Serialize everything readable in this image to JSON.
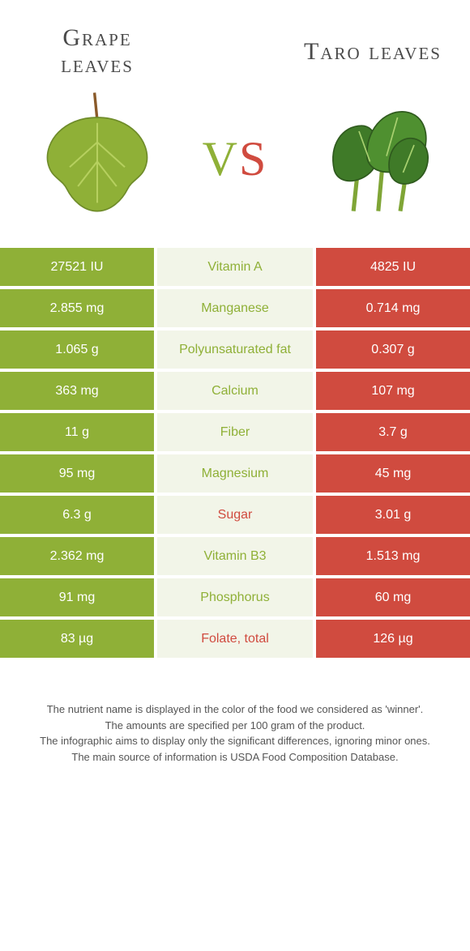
{
  "titles": {
    "left_line1": "Grape",
    "left_line2": "leaves",
    "right": "Taro leaves"
  },
  "vs": {
    "v": "V",
    "s": "S"
  },
  "colors": {
    "left_bar": "#8fb037",
    "right_bar": "#d04b3f",
    "mid_bg": "#f2f5e8",
    "winner_left_text": "#8fb037",
    "winner_right_text": "#d04b3f"
  },
  "rows": [
    {
      "left": "27521 IU",
      "label": "Vitamin A",
      "right": "4825 IU",
      "winner": "left"
    },
    {
      "left": "2.855 mg",
      "label": "Manganese",
      "right": "0.714 mg",
      "winner": "left"
    },
    {
      "left": "1.065 g",
      "label": "Polyunsaturated fat",
      "right": "0.307 g",
      "winner": "left"
    },
    {
      "left": "363 mg",
      "label": "Calcium",
      "right": "107 mg",
      "winner": "left"
    },
    {
      "left": "11 g",
      "label": "Fiber",
      "right": "3.7 g",
      "winner": "left"
    },
    {
      "left": "95 mg",
      "label": "Magnesium",
      "right": "45 mg",
      "winner": "left"
    },
    {
      "left": "6.3 g",
      "label": "Sugar",
      "right": "3.01 g",
      "winner": "right"
    },
    {
      "left": "2.362 mg",
      "label": "Vitamin B3",
      "right": "1.513 mg",
      "winner": "left"
    },
    {
      "left": "91 mg",
      "label": "Phosphorus",
      "right": "60 mg",
      "winner": "left"
    },
    {
      "left": "83 µg",
      "label": "Folate, total",
      "right": "126 µg",
      "winner": "right"
    }
  ],
  "footer": {
    "line1": "The nutrient name is displayed in the color of the food we considered as 'winner'.",
    "line2": "The amounts are specified per 100 gram of the product.",
    "line3": "The infographic aims to display only the significant differences, ignoring minor ones.",
    "line4": "The main source of information is USDA Food Composition Database."
  }
}
